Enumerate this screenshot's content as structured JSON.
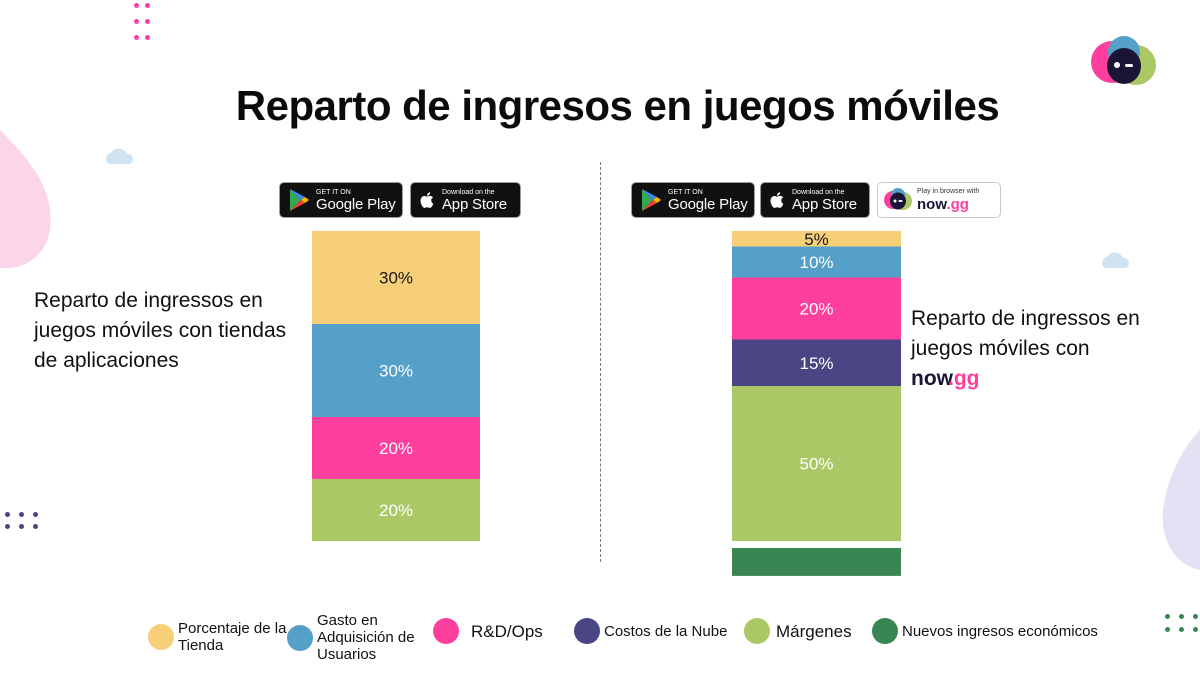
{
  "title": "Reparto de ingresos en juegos móviles",
  "badges": {
    "google_play_small": "GET IT ON",
    "google_play_large": "Google Play",
    "app_store_small": "Download on the",
    "app_store_large": "App Store",
    "nowgg_small": "Play in browser with",
    "nowgg_brand": "now",
    "nowgg_tld": ".gg"
  },
  "left_caption": "Reparto de ingressos en juegos móviles con tiendas de aplicaciones",
  "right_caption_text": "Reparto de ingressos en juegos móviles con",
  "right_caption_brand": "now",
  "right_caption_tld": ".gg",
  "colors": {
    "store": "#F6CF78",
    "ua": "#54A0C8",
    "rd": "#FF3F9D",
    "cloud": "#4A4685",
    "margins": "#AAC865",
    "new_revenue": "#3A8653",
    "accent_pink": "#FF3F9D"
  },
  "chart_data": [
    {
      "type": "bar",
      "stacked": true,
      "categories": [
        "Tiendas de aplicaciones"
      ],
      "series": [
        {
          "name": "Porcentaje de la Tienda",
          "values": [
            30
          ],
          "label": "30%",
          "color": "#F6CF78"
        },
        {
          "name": "Gasto en Adquisición de Usuarios",
          "values": [
            30
          ],
          "label": "30%",
          "color": "#54A0C8"
        },
        {
          "name": "R&D/Ops",
          "values": [
            20
          ],
          "label": "20%",
          "color": "#FF3F9D"
        },
        {
          "name": "Márgenes",
          "values": [
            20
          ],
          "label": "20%",
          "color": "#AAC865"
        }
      ]
    },
    {
      "type": "bar",
      "stacked": true,
      "categories": [
        "now.gg"
      ],
      "series": [
        {
          "name": "Porcentaje de la Tienda",
          "values": [
            5
          ],
          "label": "5%",
          "color": "#F6CF78"
        },
        {
          "name": "Gasto en Adquisición de Usuarios",
          "values": [
            10
          ],
          "label": "10%",
          "color": "#54A0C8"
        },
        {
          "name": "R&D/Ops",
          "values": [
            20
          ],
          "label": "20%",
          "color": "#FF3F9D"
        },
        {
          "name": "Costos de la Nube",
          "values": [
            15
          ],
          "label": "15%",
          "color": "#4A4685"
        },
        {
          "name": "Márgenes",
          "values": [
            50
          ],
          "label": "50%",
          "color": "#AAC865"
        },
        {
          "name": "Nuevos ingresos económicos",
          "values": [
            9
          ],
          "label": "",
          "color": "#3A8653"
        }
      ]
    }
  ],
  "legend": [
    {
      "label": "Porcentaje de la Tienda",
      "color": "#F6CF78"
    },
    {
      "label": "Gasto en Adquisición de Usuarios",
      "color": "#54A0C8"
    },
    {
      "label": "R&D/Ops",
      "color": "#FF3F9D"
    },
    {
      "label": "Costos de la Nube",
      "color": "#4A4685"
    },
    {
      "label": "Márgenes",
      "color": "#AAC865"
    },
    {
      "label": "Nuevos ingresos económicos",
      "color": "#3A8653"
    }
  ]
}
